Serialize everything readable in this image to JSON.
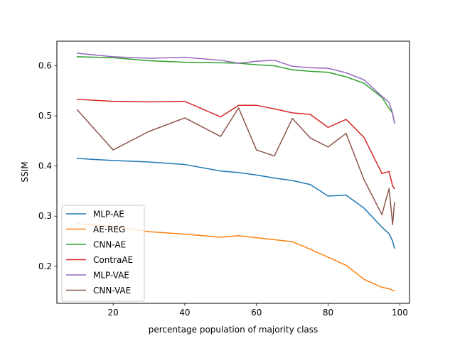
{
  "chart_data": {
    "type": "line",
    "title": "",
    "xlabel": "percentage population of majority class",
    "ylabel": "SSIM",
    "xlim": [
      4.3,
      102.7
    ],
    "ylim": [
      0.126,
      0.649
    ],
    "xticks": [
      20,
      40,
      60,
      80,
      100
    ],
    "yticks": [
      0.2,
      0.3,
      0.4,
      0.5,
      0.6
    ],
    "legend_position": "lower-left",
    "x": [
      10,
      20,
      30,
      40,
      50,
      55,
      60,
      65,
      70,
      75,
      80,
      85,
      90,
      95,
      97,
      98,
      98.5
    ],
    "series": [
      {
        "name": "MLP-AE",
        "color": "#1f77b4",
        "values": [
          0.415,
          0.411,
          0.408,
          0.403,
          0.39,
          0.387,
          0.382,
          0.376,
          0.371,
          0.363,
          0.34,
          0.342,
          0.316,
          0.278,
          0.265,
          0.25,
          0.236
        ]
      },
      {
        "name": "AE-REG",
        "color": "#ff7f0e",
        "values": [
          0.285,
          0.279,
          0.269,
          0.264,
          0.258,
          0.261,
          0.257,
          0.253,
          0.249,
          0.234,
          0.218,
          0.202,
          0.174,
          0.158,
          0.155,
          0.152,
          0.151
        ]
      },
      {
        "name": "CNN-AE",
        "color": "#2ca02c",
        "values": [
          0.618,
          0.616,
          0.61,
          0.607,
          0.606,
          0.605,
          0.602,
          0.6,
          0.592,
          0.589,
          0.587,
          0.578,
          0.565,
          0.537,
          0.515,
          0.505,
          0.486
        ]
      },
      {
        "name": "ContraAE",
        "color": "#d62728",
        "values": [
          0.533,
          0.529,
          0.528,
          0.529,
          0.498,
          0.521,
          0.521,
          0.514,
          0.506,
          0.503,
          0.477,
          0.493,
          0.457,
          0.385,
          0.389,
          0.36,
          0.355
        ]
      },
      {
        "name": "MLP-VAE",
        "color": "#9467bd",
        "values": [
          0.625,
          0.618,
          0.615,
          0.617,
          0.611,
          0.605,
          0.609,
          0.611,
          0.599,
          0.596,
          0.595,
          0.586,
          0.572,
          0.539,
          0.527,
          0.505,
          0.486
        ]
      },
      {
        "name": "CNN-VAE",
        "color": "#8c564b",
        "values": [
          0.512,
          0.432,
          0.469,
          0.496,
          0.459,
          0.516,
          0.432,
          0.42,
          0.495,
          0.456,
          0.438,
          0.465,
          0.373,
          0.303,
          0.355,
          0.283,
          0.327
        ]
      }
    ]
  }
}
